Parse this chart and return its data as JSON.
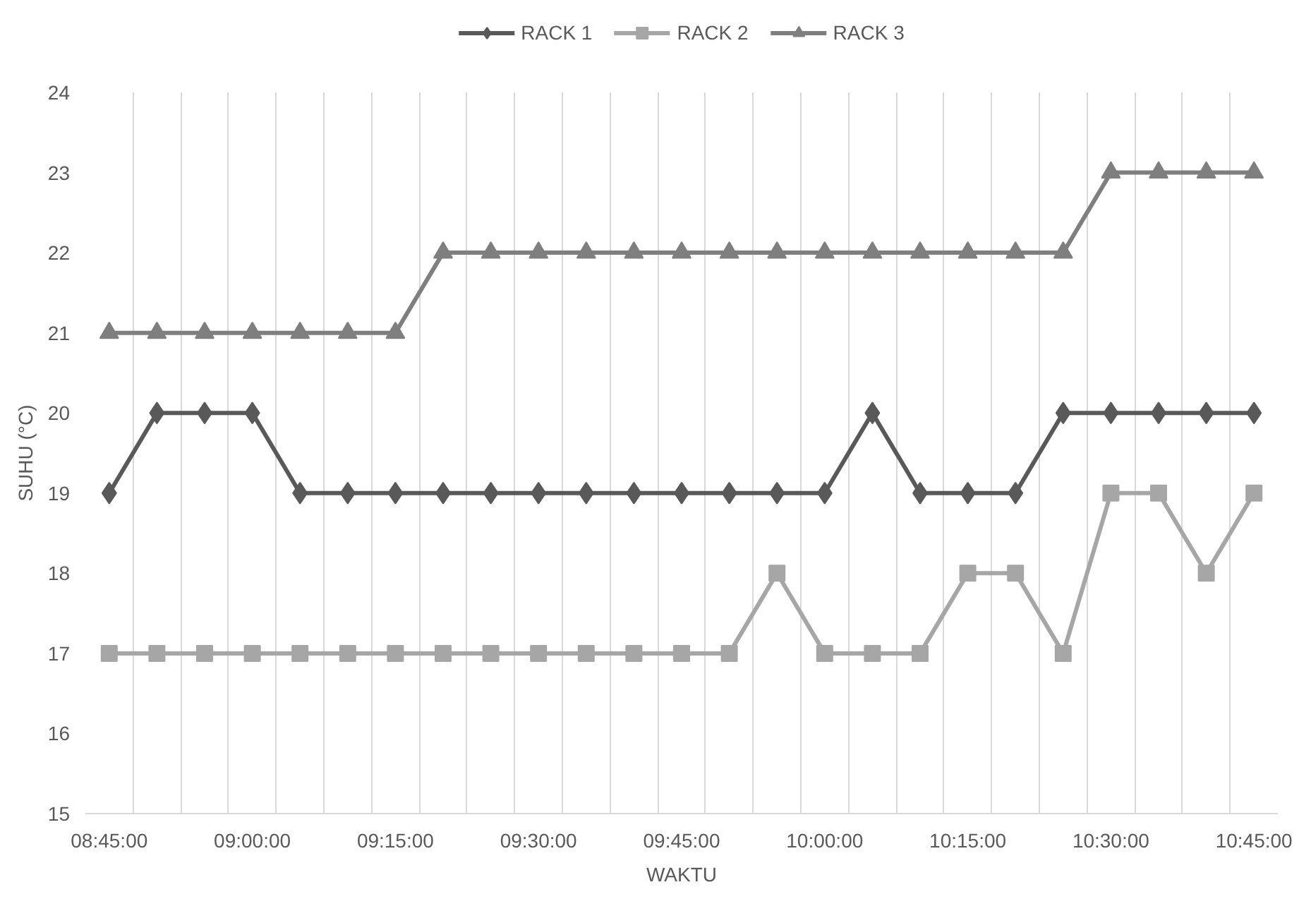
{
  "chart_data": {
    "type": "line",
    "xlabel": "WAKTU",
    "ylabel": "SUHU (°C)",
    "categories": [
      "08:45:00",
      null,
      null,
      "09:00:00",
      null,
      null,
      "09:15:00",
      null,
      null,
      "09:30:00",
      null,
      null,
      "09:45:00",
      null,
      null,
      "10:00:00",
      null,
      null,
      "10:15:00",
      null,
      null,
      "10:30:00",
      null,
      null,
      "10:45:00"
    ],
    "series": [
      {
        "name": "RACK 1",
        "color": "#595959",
        "marker": "diamond",
        "values": [
          19,
          20,
          20,
          20,
          19,
          19,
          19,
          19,
          19,
          19,
          19,
          19,
          19,
          19,
          19,
          19,
          20,
          19,
          19,
          19,
          20,
          20,
          20,
          20,
          20
        ]
      },
      {
        "name": "RACK 2",
        "color": "#a6a6a6",
        "marker": "square",
        "values": [
          17,
          17,
          17,
          17,
          17,
          17,
          17,
          17,
          17,
          17,
          17,
          17,
          17,
          17,
          18,
          17,
          17,
          17,
          18,
          18,
          17,
          19,
          19,
          18,
          19
        ]
      },
      {
        "name": "RACK 3",
        "color": "#7f7f7f",
        "marker": "triangle",
        "values": [
          21,
          21,
          21,
          21,
          21,
          21,
          21,
          22,
          22,
          22,
          22,
          22,
          22,
          22,
          22,
          22,
          22,
          22,
          22,
          22,
          22,
          23,
          23,
          23,
          23
        ]
      }
    ],
    "ylim": [
      15,
      24
    ],
    "yticks": [
      15,
      16,
      17,
      18,
      19,
      20,
      21,
      22,
      23,
      24
    ],
    "grid": "x",
    "legend": "top",
    "line_style": "solid"
  }
}
